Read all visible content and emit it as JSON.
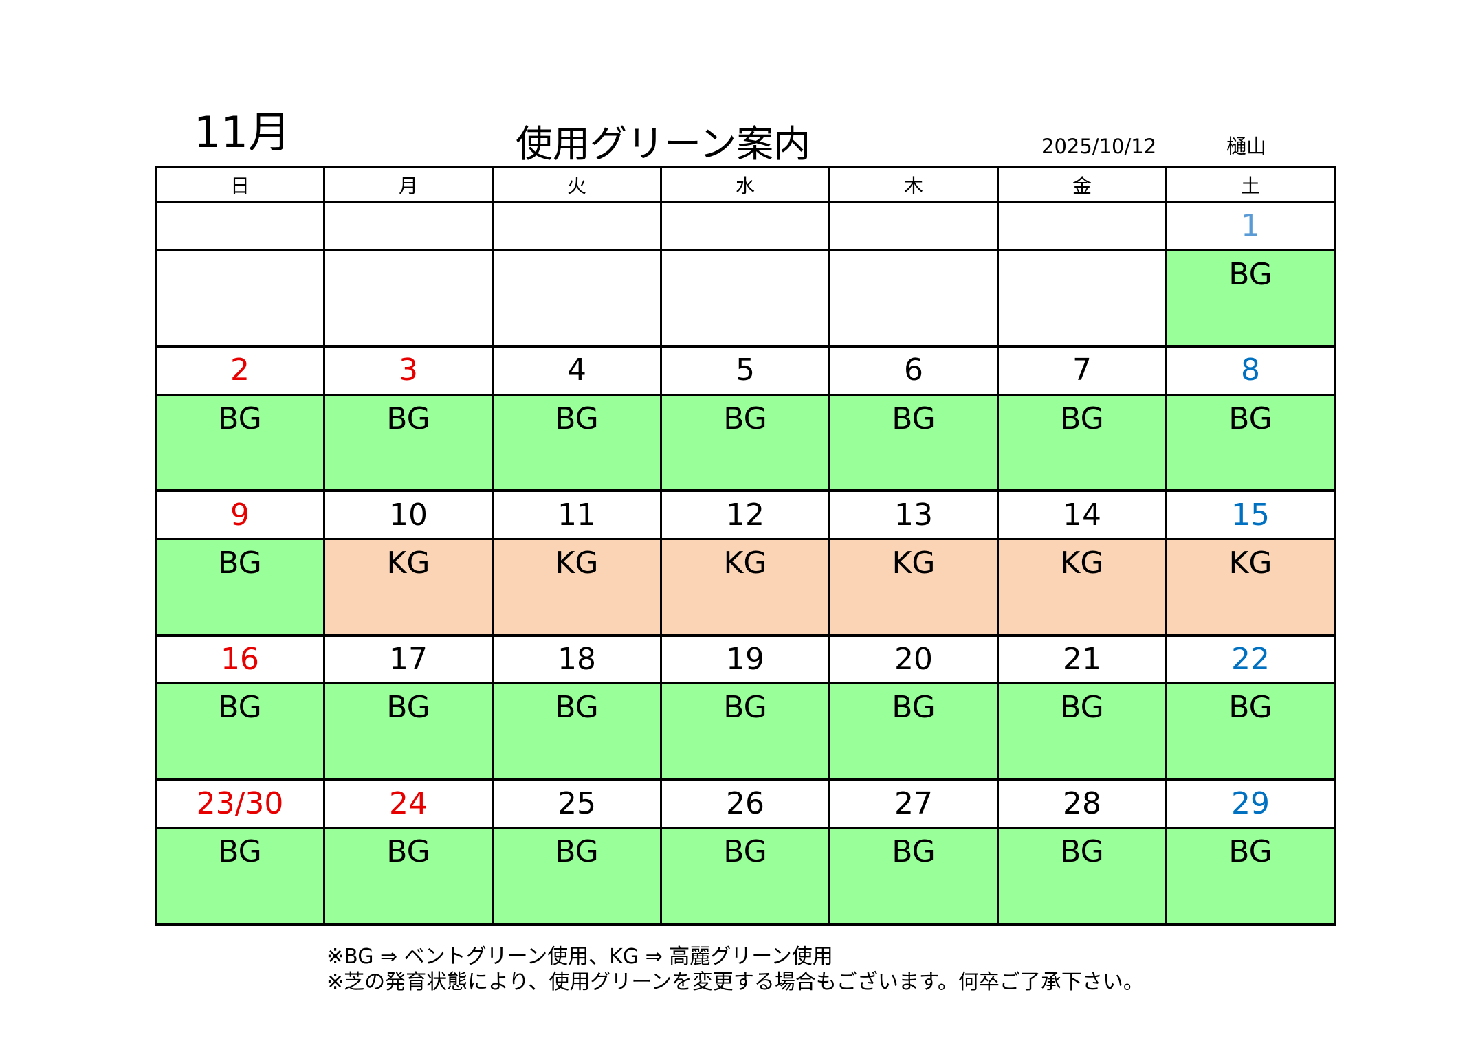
{
  "header": {
    "month": "11月",
    "title": "使用グリーン案内",
    "date": "2025/10/12",
    "author": "樋山"
  },
  "colors": {
    "sunday_holiday": "#e60000",
    "saturday": "#0070c0",
    "saturday_first": "#5b9bd5",
    "weekday": "#000000",
    "bent_green_fill": "#99ff99",
    "korai_green_fill": "#fad4b4"
  },
  "calendar": {
    "weekdays": [
      "日",
      "月",
      "火",
      "水",
      "木",
      "金",
      "土"
    ],
    "weeks": [
      {
        "dates": [
          "",
          "",
          "",
          "",
          "",
          "",
          "1"
        ],
        "greens": [
          "",
          "",
          "",
          "",
          "",
          "",
          "BG"
        ]
      },
      {
        "dates": [
          "2",
          "3",
          "4",
          "5",
          "6",
          "7",
          "8"
        ],
        "greens": [
          "BG",
          "BG",
          "BG",
          "BG",
          "BG",
          "BG",
          "BG"
        ]
      },
      {
        "dates": [
          "9",
          "10",
          "11",
          "12",
          "13",
          "14",
          "15"
        ],
        "greens": [
          "BG",
          "KG",
          "KG",
          "KG",
          "KG",
          "KG",
          "KG"
        ]
      },
      {
        "dates": [
          "16",
          "17",
          "18",
          "19",
          "20",
          "21",
          "22"
        ],
        "greens": [
          "BG",
          "BG",
          "BG",
          "BG",
          "BG",
          "BG",
          "BG"
        ]
      },
      {
        "dates": [
          "23/30",
          "24",
          "25",
          "26",
          "27",
          "28",
          "29"
        ],
        "greens": [
          "BG",
          "BG",
          "BG",
          "BG",
          "BG",
          "BG",
          "BG"
        ]
      }
    ]
  },
  "notes": {
    "line1": "※BG ⇒ ベントグリーン使用、KG ⇒ 高麗グリーン使用",
    "line2": "※芝の発育状態により、使用グリーンを変更する場合もございます。何卒ご了承下さい。"
  }
}
